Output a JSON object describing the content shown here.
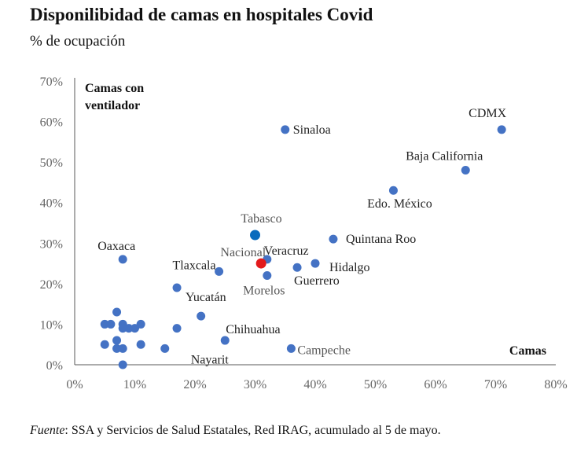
{
  "header": {
    "title": "Disponilibidad de camas en hospitales Covid",
    "subtitle": "% de ocupación"
  },
  "footer": {
    "source_label": "Fuente",
    "source_text": ": SSA y Servicios de Salud Estatales, Red IRAG, acumulado al 5 de mayo."
  },
  "colors": {
    "point": "#4472c4",
    "tabasco": "#0a6bbd",
    "nacional": "#e31a1c",
    "label": "#222222",
    "label_gray": "#555555",
    "axis": "#595959",
    "tick": "#666666"
  },
  "chart_data": {
    "type": "scatter",
    "title": "Disponilibidad de camas en hospitales Covid",
    "subtitle": "% de ocupación",
    "xlabel": "Camas",
    "ylabel": "Camas con ventilador",
    "xlim": [
      0,
      80
    ],
    "ylim": [
      0,
      70
    ],
    "x_ticks": [
      "0%",
      "10%",
      "20%",
      "30%",
      "40%",
      "50%",
      "60%",
      "70%",
      "80%"
    ],
    "y_ticks": [
      "0%",
      "10%",
      "20%",
      "30%",
      "40%",
      "50%",
      "60%",
      "70%"
    ],
    "grid": false,
    "points": [
      {
        "label": "CDMX",
        "x": 71,
        "y": 58
      },
      {
        "label": "Baja California",
        "x": 65,
        "y": 48
      },
      {
        "label": "Edo. México",
        "x": 53,
        "y": 43
      },
      {
        "label": "Sinaloa",
        "x": 35,
        "y": 58
      },
      {
        "label": "Quintana Roo",
        "x": 43,
        "y": 31
      },
      {
        "label": "Tabasco",
        "x": 30,
        "y": 32
      },
      {
        "label": "Veracruz",
        "x": 32,
        "y": 26
      },
      {
        "label": "Hidalgo",
        "x": 40,
        "y": 25
      },
      {
        "label": "Guerrero",
        "x": 37,
        "y": 24
      },
      {
        "label": "Nacional",
        "x": 31,
        "y": 25
      },
      {
        "label": "Morelos",
        "x": 32,
        "y": 22
      },
      {
        "label": "Tlaxcala",
        "x": 24,
        "y": 23
      },
      {
        "label": "Oaxaca",
        "x": 8,
        "y": 26
      },
      {
        "label": "Yucatán",
        "x": 17,
        "y": 19
      },
      {
        "label": "Chihuahua",
        "x": 25,
        "y": 6
      },
      {
        "label": "Nayarit",
        "x": 15,
        "y": 4
      },
      {
        "label": "Campeche",
        "x": 36,
        "y": 4
      },
      {
        "label": "",
        "x": 21,
        "y": 12
      },
      {
        "label": "",
        "x": 17,
        "y": 9
      },
      {
        "label": "",
        "x": 7,
        "y": 13
      },
      {
        "label": "",
        "x": 5,
        "y": 10
      },
      {
        "label": "",
        "x": 6,
        "y": 10
      },
      {
        "label": "",
        "x": 8,
        "y": 10
      },
      {
        "label": "",
        "x": 8,
        "y": 9
      },
      {
        "label": "",
        "x": 9,
        "y": 9
      },
      {
        "label": "",
        "x": 10,
        "y": 9
      },
      {
        "label": "",
        "x": 11,
        "y": 10
      },
      {
        "label": "",
        "x": 7,
        "y": 6
      },
      {
        "label": "",
        "x": 5,
        "y": 5
      },
      {
        "label": "",
        "x": 7,
        "y": 4
      },
      {
        "label": "",
        "x": 8,
        "y": 4
      },
      {
        "label": "",
        "x": 11,
        "y": 5
      },
      {
        "label": "",
        "x": 8,
        "y": 0
      }
    ]
  }
}
